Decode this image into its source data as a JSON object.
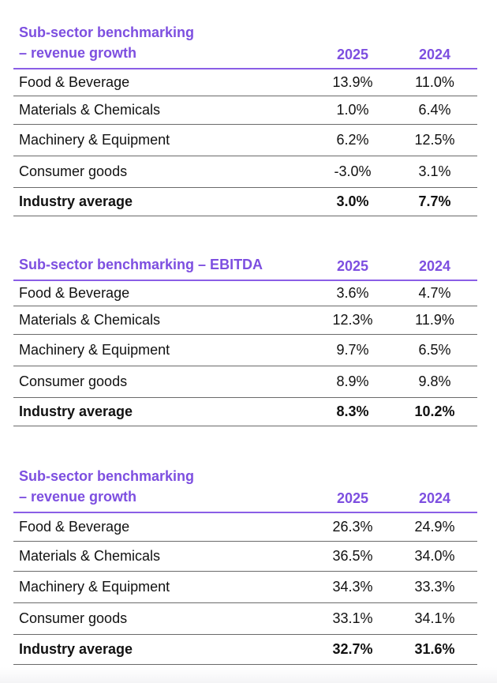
{
  "tables": [
    {
      "title": "Sub-sector benchmarking – revenue growth",
      "years": [
        "2025",
        "2024"
      ],
      "rows": [
        {
          "label": "Food & Beverage",
          "v2025": "13.9%",
          "v2024": "11.0%"
        },
        {
          "label": "Materials & Chemicals",
          "v2025": "1.0%",
          "v2024": "6.4%"
        },
        {
          "label": "Machinery & Equipment",
          "v2025": "6.2%",
          "v2024": "12.5%"
        },
        {
          "label": "Consumer goods",
          "v2025": "-3.0%",
          "v2024": "3.1%"
        },
        {
          "label": "Industry average",
          "v2025": "3.0%",
          "v2024": "7.7%"
        }
      ]
    },
    {
      "title": "Sub-sector benchmarking – EBITDA",
      "years": [
        "2025",
        "2024"
      ],
      "rows": [
        {
          "label": "Food & Beverage",
          "v2025": "3.6%",
          "v2024": "4.7%"
        },
        {
          "label": "Materials & Chemicals",
          "v2025": "12.3%",
          "v2024": "11.9%"
        },
        {
          "label": "Machinery & Equipment",
          "v2025": "9.7%",
          "v2024": "6.5%"
        },
        {
          "label": "Consumer goods",
          "v2025": "8.9%",
          "v2024": "9.8%"
        },
        {
          "label": "Industry average",
          "v2025": "8.3%",
          "v2024": "10.2%"
        }
      ]
    },
    {
      "title": "Sub-sector benchmarking – revenue growth",
      "years": [
        "2025",
        "2024"
      ],
      "rows": [
        {
          "label": "Food & Beverage",
          "v2025": "26.3%",
          "v2024": "24.9%"
        },
        {
          "label": "Materials & Chemicals",
          "v2025": "36.5%",
          "v2024": "34.0%"
        },
        {
          "label": "Machinery & Equipment",
          "v2025": "34.3%",
          "v2024": "33.3%"
        },
        {
          "label": "Consumer goods",
          "v2025": "33.1%",
          "v2024": "34.1%"
        },
        {
          "label": "Industry average",
          "v2025": "32.7%",
          "v2024": "31.6%"
        }
      ]
    }
  ]
}
